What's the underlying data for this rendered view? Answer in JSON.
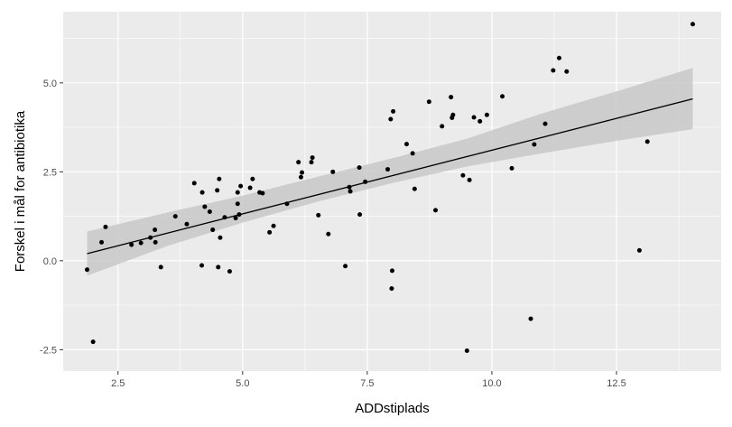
{
  "chart_data": {
    "type": "scatter",
    "xlabel": "ADDstiplads",
    "ylabel": "Forskel i mål for antibiotika",
    "xlim": [
      1.4,
      14.6
    ],
    "ylim": [
      -3.1,
      7.0
    ],
    "x_ticks": [
      2.5,
      5.0,
      7.5,
      10.0,
      12.5
    ],
    "x_tick_labels": [
      "2.5",
      "5.0",
      "7.5",
      "10.0",
      "12.5"
    ],
    "y_ticks": [
      -2.5,
      0.0,
      2.5,
      5.0
    ],
    "y_tick_labels": [
      "-2.5",
      "0.0",
      "2.5",
      "5.0"
    ],
    "grid": true,
    "legend": "none",
    "colors": {
      "panel": "#ebebeb",
      "grid_major": "#ffffff",
      "points": "#000000",
      "line": "#000000",
      "ribbon": "#c8c8c8"
    },
    "points": [
      [
        1.88,
        -0.25
      ],
      [
        2.0,
        -2.28
      ],
      [
        2.17,
        0.52
      ],
      [
        2.25,
        0.95
      ],
      [
        2.77,
        0.45
      ],
      [
        2.96,
        0.5
      ],
      [
        3.15,
        0.65
      ],
      [
        3.24,
        0.87
      ],
      [
        3.25,
        0.52
      ],
      [
        3.36,
        -0.18
      ],
      [
        3.65,
        1.25
      ],
      [
        3.88,
        1.03
      ],
      [
        4.03,
        2.18
      ],
      [
        4.18,
        -0.13
      ],
      [
        4.19,
        1.92
      ],
      [
        4.24,
        1.52
      ],
      [
        4.34,
        1.38
      ],
      [
        4.4,
        0.87
      ],
      [
        4.49,
        1.98
      ],
      [
        4.51,
        -0.18
      ],
      [
        4.53,
        2.3
      ],
      [
        4.55,
        0.65
      ],
      [
        4.64,
        1.22
      ],
      [
        4.74,
        -0.3
      ],
      [
        4.86,
        1.2
      ],
      [
        4.9,
        1.92
      ],
      [
        4.9,
        1.6
      ],
      [
        4.93,
        1.3
      ],
      [
        4.96,
        2.1
      ],
      [
        5.15,
        2.05
      ],
      [
        5.2,
        2.3
      ],
      [
        5.34,
        1.92
      ],
      [
        5.4,
        1.9
      ],
      [
        5.54,
        0.8
      ],
      [
        5.62,
        0.98
      ],
      [
        5.89,
        1.6
      ],
      [
        6.12,
        2.77
      ],
      [
        6.17,
        2.35
      ],
      [
        6.19,
        2.48
      ],
      [
        6.38,
        2.77
      ],
      [
        6.4,
        2.9
      ],
      [
        6.52,
        1.28
      ],
      [
        6.72,
        0.75
      ],
      [
        6.81,
        2.5
      ],
      [
        7.06,
        -0.15
      ],
      [
        7.14,
        2.07
      ],
      [
        7.16,
        1.95
      ],
      [
        7.34,
        2.62
      ],
      [
        7.35,
        1.3
      ],
      [
        7.46,
        2.22
      ],
      [
        7.91,
        2.57
      ],
      [
        7.97,
        3.98
      ],
      [
        8.0,
        -0.28
      ],
      [
        7.99,
        -0.78
      ],
      [
        8.02,
        4.2
      ],
      [
        8.29,
        3.28
      ],
      [
        8.41,
        3.02
      ],
      [
        8.45,
        2.02
      ],
      [
        8.74,
        4.47
      ],
      [
        8.87,
        1.42
      ],
      [
        9.0,
        3.78
      ],
      [
        9.18,
        4.6
      ],
      [
        9.2,
        4.02
      ],
      [
        9.22,
        4.1
      ],
      [
        9.42,
        2.4
      ],
      [
        9.5,
        -2.53
      ],
      [
        9.55,
        2.27
      ],
      [
        9.64,
        4.03
      ],
      [
        9.76,
        3.92
      ],
      [
        9.9,
        4.1
      ],
      [
        10.21,
        4.62
      ],
      [
        10.4,
        2.6
      ],
      [
        10.78,
        -1.63
      ],
      [
        10.85,
        3.27
      ],
      [
        11.07,
        3.85
      ],
      [
        11.23,
        5.35
      ],
      [
        11.35,
        5.7
      ],
      [
        11.5,
        5.32
      ],
      [
        12.96,
        0.29
      ],
      [
        13.12,
        3.35
      ],
      [
        14.03,
        6.65
      ]
    ],
    "fit": {
      "x": [
        1.88,
        14.03
      ],
      "y": [
        0.2,
        4.55
      ],
      "ribbon_x": [
        1.88,
        3.5,
        5.0,
        6.5,
        8.0,
        9.5,
        11.0,
        12.5,
        14.03
      ],
      "ribbon_lower": [
        -0.42,
        0.42,
        1.07,
        1.66,
        2.18,
        2.65,
        3.02,
        3.37,
        3.7
      ],
      "ribbon_upper": [
        0.82,
        1.36,
        1.83,
        2.36,
        2.88,
        3.43,
        4.14,
        4.76,
        5.42
      ]
    }
  }
}
